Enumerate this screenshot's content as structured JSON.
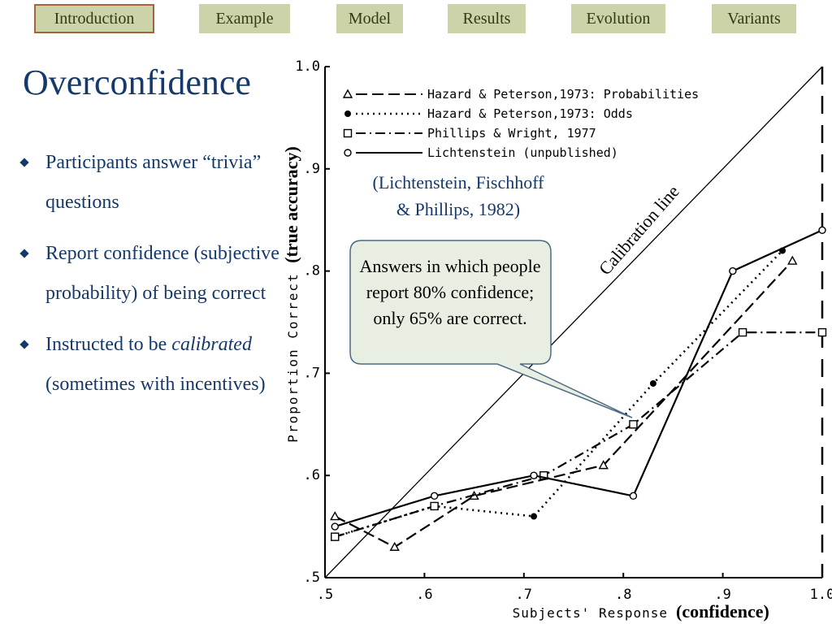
{
  "nav": {
    "tabs": [
      {
        "label": "Introduction",
        "active": true
      },
      {
        "label": "Example",
        "active": false
      },
      {
        "label": "Model",
        "active": false
      },
      {
        "label": "Results",
        "active": false
      },
      {
        "label": "Evolution",
        "active": false
      },
      {
        "label": "Variants",
        "active": false
      }
    ]
  },
  "slide": {
    "title": "Overconfidence",
    "bullets": [
      {
        "text": "Participants answer “trivia” questions"
      },
      {
        "text": "Report confidence (subjective probability) of being correct"
      },
      {
        "text_pre": "Instructed to be ",
        "text_italic": "calibrated",
        "text_post": " (sometimes with incentives)"
      }
    ],
    "citation": [
      "(Lichtenstein, Fischhoff",
      "& Phillips, 1982)"
    ],
    "callout": "Answers in which people report 80% confidence; only 65% are correct.",
    "y_annotation": "(true accuracy)",
    "x_annotation": "(confidence)",
    "diagonal_label": "Calibration line"
  },
  "colors": {
    "nav_bg": "#cdd3a8",
    "nav_active_border": "#a7643a",
    "title": "#15396b",
    "callout_bg": "#e9eee2",
    "callout_border": "#4a6a86"
  },
  "chart_data": {
    "type": "line",
    "xlabel": "Subjects' Response",
    "ylabel": "Proportion Correct",
    "xlim": [
      0.5,
      1.0
    ],
    "ylim": [
      0.5,
      1.0
    ],
    "x_ticks": [
      ".5",
      ".6",
      ".7",
      ".8",
      ".9",
      "1.0"
    ],
    "y_ticks": [
      ".5",
      ".6",
      ".7",
      ".8",
      ".9",
      "1.0"
    ],
    "series": [
      {
        "name": "Hazard & Peterson,1973: Probabilities",
        "marker": "triangle",
        "dash": "long",
        "points": [
          [
            0.51,
            0.56
          ],
          [
            0.57,
            0.53
          ],
          [
            0.65,
            0.58
          ],
          [
            0.78,
            0.61
          ],
          [
            0.97,
            0.81
          ]
        ]
      },
      {
        "name": "Hazard & Peterson,1973: Odds",
        "marker": "dot",
        "dash": "dotted",
        "points": [
          [
            0.51,
            0.54
          ],
          [
            0.61,
            0.57
          ],
          [
            0.71,
            0.56
          ],
          [
            0.83,
            0.69
          ],
          [
            0.96,
            0.82
          ]
        ]
      },
      {
        "name": "Phillips & Wright, 1977",
        "marker": "square",
        "dash": "dashdot",
        "points": [
          [
            0.51,
            0.54
          ],
          [
            0.61,
            0.57
          ],
          [
            0.72,
            0.6
          ],
          [
            0.81,
            0.65
          ],
          [
            0.92,
            0.74
          ],
          [
            1.0,
            0.74
          ]
        ]
      },
      {
        "name": "Lichtenstein (unpublished)",
        "marker": "circle",
        "dash": "solid",
        "points": [
          [
            0.51,
            0.55
          ],
          [
            0.61,
            0.58
          ],
          [
            0.71,
            0.6
          ],
          [
            0.81,
            0.58
          ],
          [
            0.91,
            0.8
          ],
          [
            1.0,
            0.84
          ]
        ]
      }
    ]
  }
}
